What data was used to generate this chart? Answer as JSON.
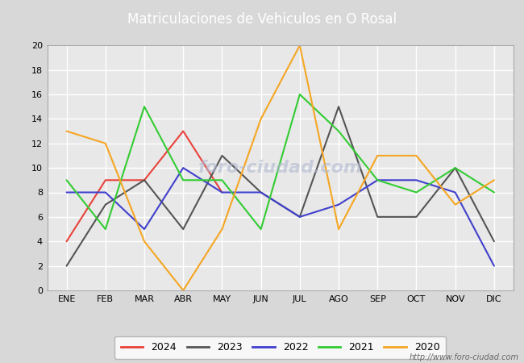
{
  "title": "Matriculaciones de Vehiculos en O Rosal",
  "title_bg_color": "#4a6fa5",
  "title_text_color": "white",
  "months": [
    "ENE",
    "FEB",
    "MAR",
    "ABR",
    "MAY",
    "JUN",
    "JUL",
    "AGO",
    "SEP",
    "OCT",
    "NOV",
    "DIC"
  ],
  "ylim": [
    0,
    20
  ],
  "yticks": [
    0,
    2,
    4,
    6,
    8,
    10,
    12,
    14,
    16,
    18,
    20
  ],
  "series": {
    "2024": {
      "color": "#e8433a",
      "data": [
        4,
        9,
        9,
        13,
        8,
        null,
        null,
        null,
        null,
        null,
        null,
        null
      ]
    },
    "2023": {
      "color": "#555555",
      "data": [
        2,
        7,
        9,
        5,
        11,
        8,
        6,
        15,
        6,
        6,
        10,
        4
      ]
    },
    "2022": {
      "color": "#4040cc",
      "data": [
        8,
        8,
        5,
        10,
        8,
        8,
        6,
        7,
        9,
        9,
        8,
        2
      ]
    },
    "2021": {
      "color": "#33cc33",
      "data": [
        9,
        5,
        15,
        9,
        9,
        5,
        16,
        13,
        9,
        8,
        10,
        8
      ]
    },
    "2020": {
      "color": "#f5a623",
      "data": [
        13,
        12,
        4,
        0,
        5,
        14,
        20,
        5,
        11,
        11,
        7,
        9
      ]
    }
  },
  "legend_order": [
    "2024",
    "2023",
    "2022",
    "2021",
    "2020"
  ],
  "url_text": "http://www.foro-ciudad.com",
  "fig_bg_color": "#d8d8d8",
  "plot_bg_color": "#e8e8e8",
  "grid_color": "white"
}
